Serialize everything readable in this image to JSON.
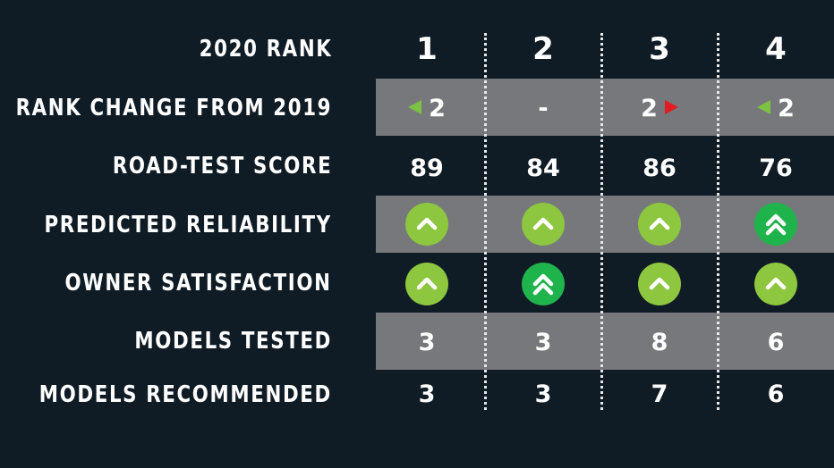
{
  "row_labels": {
    "rank_2020": "2020 RANK",
    "rank_change": "RANK CHANGE FROM 2019",
    "road_test": "ROAD-TEST SCORE",
    "reliability": "PREDICTED RELIABILITY",
    "satisfaction": "OWNER SATISFACTION",
    "models_tested": "MODELS TESTED",
    "models_recommended": "MODELS RECOMMENDED"
  },
  "columns": [
    {
      "rank": "1",
      "change": "2",
      "change_dir": "up",
      "road_test": "89",
      "reliability": "better",
      "satisfaction": "better",
      "models_tested": "3",
      "models_recommended": "3"
    },
    {
      "rank": "2",
      "change": "-",
      "change_dir": "none",
      "road_test": "84",
      "reliability": "better",
      "satisfaction": "much-better",
      "models_tested": "3",
      "models_recommended": "3"
    },
    {
      "rank": "3",
      "change": "2",
      "change_dir": "down",
      "road_test": "86",
      "reliability": "better",
      "satisfaction": "better",
      "models_tested": "8",
      "models_recommended": "7"
    },
    {
      "rank": "4",
      "change": "2",
      "change_dir": "up",
      "road_test": "76",
      "reliability": "much-better",
      "satisfaction": "better",
      "models_tested": "6",
      "models_recommended": "6"
    }
  ],
  "colors": {
    "background": "#101c25",
    "band": "#76787c",
    "rating_better": "#8dc63f",
    "rating_much_better": "#1fb34b",
    "rank_up": "#7dc242",
    "rank_down": "#e21c23"
  },
  "icons": {
    "better": "single-chevron-up-icon",
    "much_better": "double-chevron-up-icon",
    "rank_up": "green-left-triangle-icon",
    "rank_down": "red-right-triangle-icon"
  }
}
